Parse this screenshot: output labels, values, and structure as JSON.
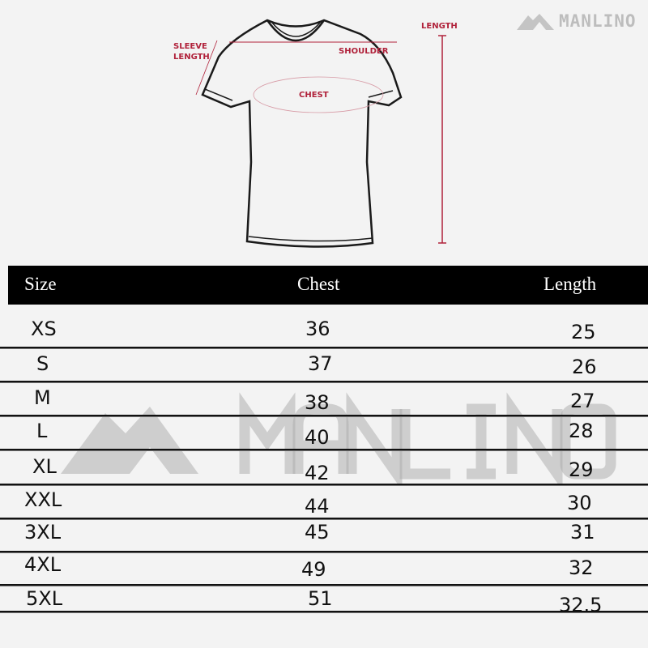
{
  "diagram": {
    "labels": {
      "sleeve_line1": "SLEEVE",
      "sleeve_line2": "LENGTH",
      "shoulder": "SHOULDER",
      "chest": "CHEST",
      "length": "LENGTH"
    },
    "accent_color": "#b0213a"
  },
  "brand": {
    "name": "MANLINO",
    "watermark": "MANLINO"
  },
  "table": {
    "headers": [
      "Size",
      "Chest",
      "Length"
    ],
    "rows": [
      {
        "size": "XS",
        "chest": "36",
        "length": "25"
      },
      {
        "size": "S",
        "chest": "37",
        "length": "26"
      },
      {
        "size": "M",
        "chest": "38",
        "length": "27"
      },
      {
        "size": "L",
        "chest": "40",
        "length": "28"
      },
      {
        "size": "XL",
        "chest": "42",
        "length": "29"
      },
      {
        "size": "XXL",
        "chest": "44",
        "length": "30"
      },
      {
        "size": "3XL",
        "chest": "45",
        "length": "31"
      },
      {
        "size": "4XL",
        "chest": "49",
        "length": "32"
      },
      {
        "size": "5XL",
        "chest": "51",
        "length": "32.5"
      }
    ]
  }
}
